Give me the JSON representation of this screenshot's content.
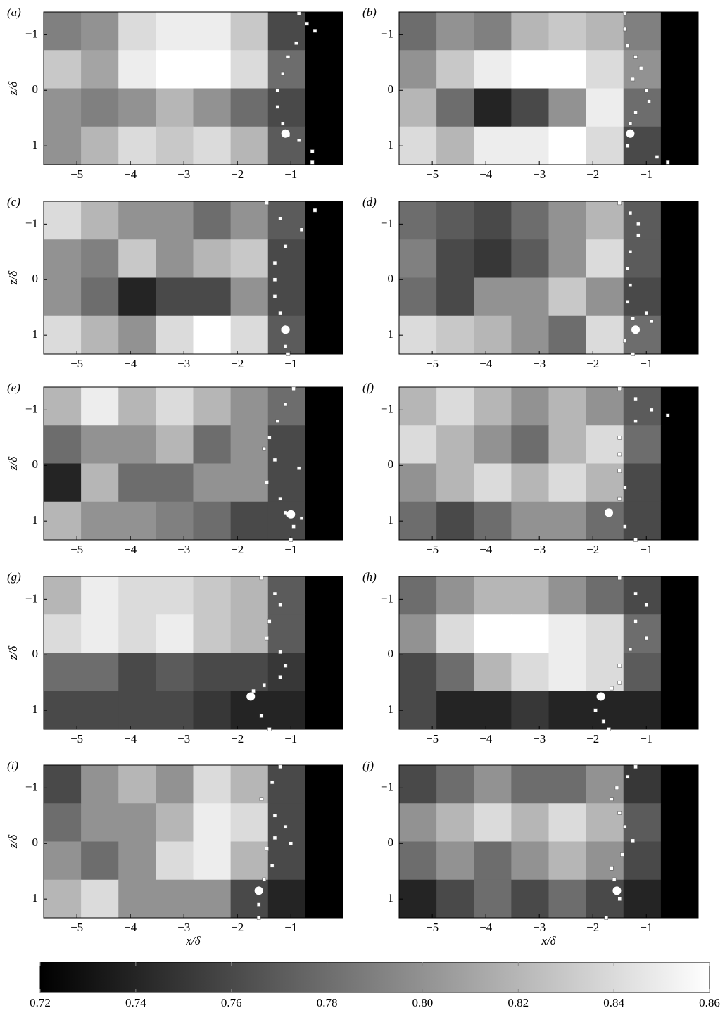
{
  "chart_data": [
    {
      "type": "heatmap",
      "panel_label": "(a)",
      "ylabel": "z/δ",
      "xlim": [
        -5.62,
        -0.03
      ],
      "ylim": [
        -1.41,
        1.34
      ],
      "y_inverted": true,
      "xticks": [
        {
          "value": -5,
          "label": "−5"
        },
        {
          "value": -4,
          "label": "−4"
        },
        {
          "value": -3,
          "label": "−3"
        },
        {
          "value": -2,
          "label": "−2"
        },
        {
          "value": -1,
          "label": "−1"
        }
      ],
      "yticks": [
        {
          "value": -1,
          "label": "−1"
        },
        0,
        1
      ],
      "color": "#ffffff",
      "z": [
        [
          0.79,
          0.8,
          0.84,
          0.85,
          0.85,
          0.83,
          0.76,
          0.72
        ],
        [
          0.83,
          0.81,
          0.85,
          0.86,
          0.86,
          0.84,
          0.78,
          0.72
        ],
        [
          0.8,
          0.79,
          0.8,
          0.82,
          0.8,
          0.78,
          0.76,
          0.72
        ],
        [
          0.8,
          0.82,
          0.84,
          0.83,
          0.84,
          0.82,
          0.77,
          0.72
        ]
      ],
      "front": {
        "x": [
          -0.85,
          -0.7,
          -0.55,
          -0.9,
          -1.05,
          -1.15,
          -1.25,
          -1.25,
          -1.15,
          -1.05,
          -0.85,
          -0.6,
          -0.6
        ],
        "y": [
          -1.38,
          -1.2,
          -1.07,
          -0.85,
          -0.6,
          -0.3,
          0,
          0.3,
          0.6,
          0.8,
          0.9,
          1.1,
          1.3
        ]
      },
      "marker": {
        "x": -1.1,
        "y": 0.78
      }
    },
    {
      "type": "heatmap",
      "panel_label": "(b)",
      "xlim": [
        -5.62,
        -0.03
      ],
      "ylim": [
        -1.41,
        1.34
      ],
      "y_inverted": true,
      "xticks": [
        {
          "value": -5,
          "label": "−5"
        },
        {
          "value": -4,
          "label": "−4"
        },
        {
          "value": -3,
          "label": "−3"
        },
        {
          "value": -2,
          "label": "−2"
        },
        {
          "value": -1,
          "label": "−1"
        }
      ],
      "yticks": [
        {
          "value": -1,
          "label": "−1"
        },
        0,
        1
      ],
      "color": "#ffffff",
      "z": [
        [
          0.78,
          0.8,
          0.79,
          0.82,
          0.83,
          0.82,
          0.79,
          0.72
        ],
        [
          0.8,
          0.83,
          0.85,
          0.86,
          0.86,
          0.84,
          0.8,
          0.72
        ],
        [
          0.82,
          0.78,
          0.74,
          0.76,
          0.8,
          0.85,
          0.78,
          0.72
        ],
        [
          0.84,
          0.82,
          0.85,
          0.85,
          0.86,
          0.84,
          0.76,
          0.72
        ]
      ],
      "front": {
        "x": [
          -1.4,
          -1.4,
          -1.35,
          -1.2,
          -1.1,
          -1.25,
          -1.0,
          -0.95,
          -1.2,
          -1.3,
          -1.35,
          -0.8,
          -0.6
        ],
        "y": [
          -1.38,
          -1.1,
          -0.8,
          -0.6,
          -0.4,
          -0.2,
          0,
          0.2,
          0.4,
          0.6,
          1.0,
          1.2,
          1.3
        ]
      },
      "marker": {
        "x": -1.3,
        "y": 0.78
      }
    },
    {
      "type": "heatmap",
      "panel_label": "(c)",
      "ylabel": "z/δ",
      "xlim": [
        -5.62,
        -0.03
      ],
      "ylim": [
        -1.41,
        1.34
      ],
      "y_inverted": true,
      "xticks": [
        {
          "value": -5,
          "label": "−5"
        },
        {
          "value": -4,
          "label": "−4"
        },
        {
          "value": -3,
          "label": "−3"
        },
        {
          "value": -2,
          "label": "−2"
        },
        {
          "value": -1,
          "label": "−1"
        }
      ],
      "yticks": [
        {
          "value": -1,
          "label": "−1"
        },
        0,
        1
      ],
      "color": "#ffffff",
      "z": [
        [
          0.84,
          0.82,
          0.8,
          0.8,
          0.78,
          0.8,
          0.77,
          0.72
        ],
        [
          0.8,
          0.79,
          0.83,
          0.8,
          0.82,
          0.83,
          0.76,
          0.72
        ],
        [
          0.8,
          0.78,
          0.74,
          0.76,
          0.76,
          0.8,
          0.76,
          0.72
        ],
        [
          0.84,
          0.82,
          0.8,
          0.84,
          0.86,
          0.84,
          0.77,
          0.72
        ]
      ],
      "front": {
        "x": [
          -1.45,
          -1.2,
          -0.8,
          -0.55,
          -1.1,
          -1.3,
          -1.3,
          -1.3,
          -1.2,
          -1.15,
          -1.1,
          -1.05
        ],
        "y": [
          -1.38,
          -1.1,
          -0.9,
          -1.25,
          -0.6,
          -0.3,
          0,
          0.3,
          0.6,
          0.9,
          1.2,
          1.34
        ]
      },
      "marker": {
        "x": -1.1,
        "y": 0.9
      }
    },
    {
      "type": "heatmap",
      "panel_label": "(d)",
      "xlim": [
        -5.62,
        -0.03
      ],
      "ylim": [
        -1.41,
        1.34
      ],
      "y_inverted": true,
      "xticks": [
        {
          "value": -5,
          "label": "−5"
        },
        {
          "value": -4,
          "label": "−4"
        },
        {
          "value": -3,
          "label": "−3"
        },
        {
          "value": -2,
          "label": "−2"
        },
        {
          "value": -1,
          "label": "−1"
        }
      ],
      "yticks": [
        {
          "value": -1,
          "label": "−1"
        },
        0,
        1
      ],
      "color": "#ffffff",
      "z": [
        [
          0.78,
          0.77,
          0.76,
          0.78,
          0.8,
          0.82,
          0.77,
          0.72
        ],
        [
          0.79,
          0.76,
          0.75,
          0.77,
          0.8,
          0.84,
          0.77,
          0.72
        ],
        [
          0.78,
          0.76,
          0.8,
          0.8,
          0.83,
          0.8,
          0.76,
          0.72
        ],
        [
          0.84,
          0.83,
          0.82,
          0.8,
          0.78,
          0.84,
          0.78,
          0.72
        ]
      ],
      "front": {
        "x": [
          -1.5,
          -1.3,
          -1.15,
          -1.15,
          -1.3,
          -1.35,
          -1.3,
          -1.35,
          -1.25,
          -0.9,
          -1.0,
          -1.4,
          -1.25
        ],
        "y": [
          -1.38,
          -1.2,
          -1.0,
          -0.8,
          -0.5,
          -0.2,
          0.1,
          0.4,
          0.7,
          0.75,
          0.6,
          1.1,
          1.34
        ]
      },
      "marker": {
        "x": -1.2,
        "y": 0.9
      }
    },
    {
      "type": "heatmap",
      "panel_label": "(e)",
      "ylabel": "z/δ",
      "xlim": [
        -5.62,
        -0.03
      ],
      "ylim": [
        -1.41,
        1.34
      ],
      "y_inverted": true,
      "xticks": [
        {
          "value": -5,
          "label": "−5"
        },
        {
          "value": -4,
          "label": "−4"
        },
        {
          "value": -3,
          "label": "−3"
        },
        {
          "value": -2,
          "label": "−2"
        },
        {
          "value": -1,
          "label": "−1"
        }
      ],
      "yticks": [
        {
          "value": -1,
          "label": "−1"
        },
        0,
        1
      ],
      "color": "#ffffff",
      "z": [
        [
          0.82,
          0.85,
          0.82,
          0.84,
          0.82,
          0.8,
          0.78,
          0.72
        ],
        [
          0.78,
          0.8,
          0.8,
          0.82,
          0.78,
          0.8,
          0.76,
          0.72
        ],
        [
          0.74,
          0.82,
          0.78,
          0.78,
          0.8,
          0.8,
          0.76,
          0.72
        ],
        [
          0.82,
          0.8,
          0.8,
          0.79,
          0.78,
          0.76,
          0.76,
          0.72
        ]
      ],
      "front": {
        "x": [
          -0.95,
          -1.1,
          -1.25,
          -1.4,
          -1.5,
          -1.3,
          -0.85,
          -1.45,
          -1.2,
          -1.1,
          -0.95,
          -0.8,
          -1.0
        ],
        "y": [
          -1.38,
          -1.1,
          -0.8,
          -0.5,
          -0.3,
          -0.1,
          0.05,
          0.3,
          0.6,
          0.85,
          1.1,
          0.95,
          1.34
        ]
      },
      "marker": {
        "x": -1.0,
        "y": 0.88
      }
    },
    {
      "type": "heatmap",
      "panel_label": "(f)",
      "xlim": [
        -5.62,
        -0.03
      ],
      "ylim": [
        -1.41,
        1.34
      ],
      "y_inverted": true,
      "xticks": [
        {
          "value": -5,
          "label": "−5"
        },
        {
          "value": -4,
          "label": "−4"
        },
        {
          "value": -3,
          "label": "−3"
        },
        {
          "value": -2,
          "label": "−2"
        },
        {
          "value": -1,
          "label": "−1"
        }
      ],
      "yticks": [
        {
          "value": -1,
          "label": "−1"
        },
        0,
        1
      ],
      "color": "#ffffff",
      "z": [
        [
          0.82,
          0.84,
          0.82,
          0.8,
          0.82,
          0.8,
          0.77,
          0.72
        ],
        [
          0.84,
          0.82,
          0.8,
          0.78,
          0.82,
          0.84,
          0.78,
          0.72
        ],
        [
          0.8,
          0.82,
          0.84,
          0.82,
          0.84,
          0.82,
          0.76,
          0.72
        ],
        [
          0.78,
          0.76,
          0.78,
          0.8,
          0.8,
          0.78,
          0.76,
          0.72
        ]
      ],
      "front": {
        "x": [
          -1.5,
          -1.2,
          -0.9,
          -0.6,
          -1.2,
          -1.5,
          -1.5,
          -1.5,
          -1.4,
          -1.5,
          -1.7,
          -1.4,
          -1.2
        ],
        "y": [
          -1.38,
          -1.2,
          -1.0,
          -0.9,
          -0.8,
          -0.5,
          -0.2,
          0.1,
          0.4,
          0.6,
          0.85,
          1.1,
          1.34
        ]
      },
      "marker": {
        "x": -1.7,
        "y": 0.85
      }
    },
    {
      "type": "heatmap",
      "panel_label": "(g)",
      "ylabel": "z/δ",
      "xlim": [
        -5.62,
        -0.03
      ],
      "ylim": [
        -1.41,
        1.34
      ],
      "y_inverted": true,
      "xticks": [
        {
          "value": -5,
          "label": "−5"
        },
        {
          "value": -4,
          "label": "−4"
        },
        {
          "value": -3,
          "label": "−3"
        },
        {
          "value": -2,
          "label": "−2"
        },
        {
          "value": -1,
          "label": "−1"
        }
      ],
      "yticks": [
        {
          "value": -1,
          "label": "−1"
        },
        0,
        1
      ],
      "color": "#ffffff",
      "z": [
        [
          0.82,
          0.85,
          0.84,
          0.84,
          0.83,
          0.82,
          0.77,
          0.72
        ],
        [
          0.84,
          0.85,
          0.84,
          0.85,
          0.83,
          0.82,
          0.77,
          0.72
        ],
        [
          0.78,
          0.78,
          0.76,
          0.77,
          0.76,
          0.76,
          0.75,
          0.72
        ],
        [
          0.76,
          0.76,
          0.76,
          0.76,
          0.75,
          0.74,
          0.74,
          0.72
        ]
      ],
      "front": {
        "x": [
          -1.55,
          -1.3,
          -1.2,
          -1.4,
          -1.45,
          -1.2,
          -1.1,
          -1.2,
          -1.5,
          -1.7,
          -1.75,
          -1.55,
          -1.4
        ],
        "y": [
          -1.38,
          -1.1,
          -0.9,
          -0.6,
          -0.3,
          -0.05,
          0.2,
          0.4,
          0.55,
          0.65,
          0.75,
          1.1,
          1.34
        ]
      },
      "marker": {
        "x": -1.75,
        "y": 0.75
      }
    },
    {
      "type": "heatmap",
      "panel_label": "(h)",
      "xlim": [
        -5.62,
        -0.03
      ],
      "ylim": [
        -1.41,
        1.34
      ],
      "y_inverted": true,
      "xticks": [
        {
          "value": -5,
          "label": "−5"
        },
        {
          "value": -4,
          "label": "−4"
        },
        {
          "value": -3,
          "label": "−3"
        },
        {
          "value": -2,
          "label": "−2"
        },
        {
          "value": -1,
          "label": "−1"
        }
      ],
      "yticks": [
        {
          "value": -1,
          "label": "−1"
        },
        0,
        1
      ],
      "color": "#ffffff",
      "z": [
        [
          0.78,
          0.8,
          0.82,
          0.82,
          0.8,
          0.78,
          0.76,
          0.72
        ],
        [
          0.8,
          0.84,
          0.86,
          0.86,
          0.85,
          0.84,
          0.78,
          0.72
        ],
        [
          0.76,
          0.78,
          0.82,
          0.84,
          0.85,
          0.84,
          0.77,
          0.72
        ],
        [
          0.76,
          0.74,
          0.74,
          0.75,
          0.74,
          0.74,
          0.74,
          0.72
        ]
      ],
      "front": {
        "x": [
          -1.5,
          -1.2,
          -1.0,
          -1.2,
          -1.0,
          -1.3,
          -1.5,
          -1.5,
          -1.65,
          -1.85,
          -1.95,
          -1.8,
          -1.7
        ],
        "y": [
          -1.38,
          -1.1,
          -0.9,
          -0.6,
          -0.3,
          -0.1,
          0.2,
          0.5,
          0.6,
          0.75,
          1.0,
          1.2,
          1.34
        ]
      },
      "marker": {
        "x": -1.85,
        "y": 0.75
      }
    },
    {
      "type": "heatmap",
      "panel_label": "(i)",
      "ylabel": "z/δ",
      "xlabel": "x/δ",
      "xlim": [
        -5.62,
        -0.03
      ],
      "ylim": [
        -1.41,
        1.34
      ],
      "y_inverted": true,
      "xticks": [
        {
          "value": -5,
          "label": "−5"
        },
        {
          "value": -4,
          "label": "−4"
        },
        {
          "value": -3,
          "label": "−3"
        },
        {
          "value": -2,
          "label": "−2"
        },
        {
          "value": -1,
          "label": "−1"
        }
      ],
      "yticks": [
        {
          "value": -1,
          "label": "−1"
        },
        0,
        1
      ],
      "color": "#ffffff",
      "z": [
        [
          0.76,
          0.8,
          0.82,
          0.8,
          0.84,
          0.82,
          0.76,
          0.72
        ],
        [
          0.78,
          0.8,
          0.8,
          0.82,
          0.85,
          0.84,
          0.76,
          0.72
        ],
        [
          0.8,
          0.78,
          0.8,
          0.84,
          0.85,
          0.82,
          0.76,
          0.72
        ],
        [
          0.82,
          0.84,
          0.8,
          0.8,
          0.8,
          0.76,
          0.74,
          0.72
        ]
      ],
      "front": {
        "x": [
          -1.2,
          -1.35,
          -1.55,
          -1.3,
          -1.1,
          -1.3,
          -1.45,
          -1.0,
          -1.35,
          -1.5,
          -1.6,
          -1.6,
          -1.6
        ],
        "y": [
          -1.38,
          -1.1,
          -0.8,
          -0.5,
          -0.3,
          -0.1,
          0.1,
          0.0,
          0.4,
          0.65,
          0.85,
          1.1,
          1.34
        ]
      },
      "marker": {
        "x": -1.6,
        "y": 0.85
      }
    },
    {
      "type": "heatmap",
      "panel_label": "(j)",
      "xlabel": "x/δ",
      "xlim": [
        -5.62,
        -0.03
      ],
      "ylim": [
        -1.41,
        1.34
      ],
      "y_inverted": true,
      "xticks": [
        {
          "value": -5,
          "label": "−5"
        },
        {
          "value": -4,
          "label": "−4"
        },
        {
          "value": -3,
          "label": "−3"
        },
        {
          "value": -2,
          "label": "−2"
        },
        {
          "value": -1,
          "label": "−1"
        }
      ],
      "yticks": [
        {
          "value": -1,
          "label": "−1"
        },
        0,
        1
      ],
      "color": "#ffffff",
      "z": [
        [
          0.76,
          0.78,
          0.8,
          0.78,
          0.78,
          0.8,
          0.75,
          0.72
        ],
        [
          0.8,
          0.82,
          0.84,
          0.82,
          0.84,
          0.82,
          0.77,
          0.72
        ],
        [
          0.78,
          0.8,
          0.78,
          0.8,
          0.82,
          0.8,
          0.76,
          0.72
        ],
        [
          0.74,
          0.76,
          0.78,
          0.76,
          0.78,
          0.76,
          0.74,
          0.72
        ]
      ],
      "front": {
        "x": [
          -1.2,
          -1.35,
          -1.55,
          -1.65,
          -1.5,
          -1.4,
          -1.25,
          -1.45,
          -1.65,
          -1.6,
          -1.55,
          -1.5,
          -1.75
        ],
        "y": [
          -1.38,
          -1.2,
          -1.0,
          -0.8,
          -0.55,
          -0.3,
          -0.05,
          0.2,
          0.45,
          0.65,
          0.85,
          1.0,
          1.34
        ]
      },
      "marker": {
        "x": -1.55,
        "y": 0.85
      }
    },
    {
      "type": "colorbar",
      "clim": [
        0.72,
        0.86
      ],
      "colors": [
        "#000000",
        "#ffffff"
      ],
      "ticks": [
        0.72,
        0.74,
        0.76,
        0.78,
        {
          "value": 0.8,
          "label": "0.80"
        },
        0.82,
        0.84,
        0.86
      ]
    }
  ]
}
